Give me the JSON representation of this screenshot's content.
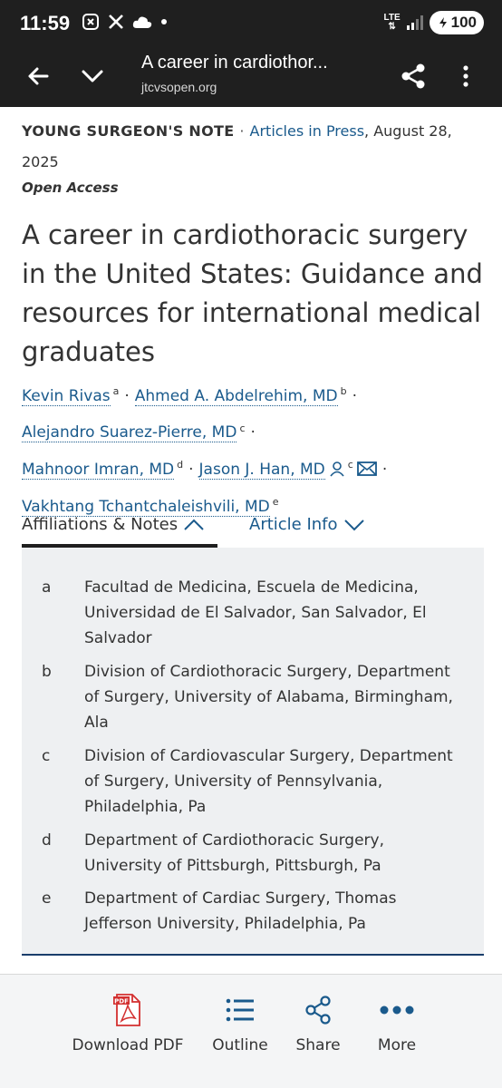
{
  "status_bar": {
    "time": "11:59",
    "network": "LTE",
    "battery": "100"
  },
  "toolbar": {
    "title": "A career in cardiothor...",
    "url": "jtcvsopen.org"
  },
  "article": {
    "section": "YOUNG SURGEON'S NOTE",
    "separator": "·",
    "status": "Articles in Press",
    "date": ", August 28,",
    "year": "2025",
    "open_access": "Open Access",
    "title": "A career in cardiothoracic surgery in the United States: Guidance and resources for international medical graduates",
    "authors": [
      {
        "name": "Kevin Rivas",
        "sup": "a"
      },
      {
        "name": "Ahmed A. Abdelrehim, MD",
        "sup": "b"
      },
      {
        "name": "Alejandro Suarez-Pierre, MD",
        "sup": "c"
      },
      {
        "name": "Mahnoor Imran, MD",
        "sup": "d"
      },
      {
        "name": "Jason J. Han, MD",
        "sup": "c"
      },
      {
        "name": "Vakhtang Tchantchaleishvili, MD",
        "sup": "e"
      }
    ]
  },
  "tabs": {
    "affiliations": "Affiliations & Notes",
    "article_info": "Article Info"
  },
  "affiliations": [
    {
      "letter": "a",
      "text": "Facultad de Medicina, Escuela de Medicina, Universidad de El Salvador, San Salvador, El Salvador"
    },
    {
      "letter": "b",
      "text": "Division of Cardiothoracic Surgery, Department of Surgery, University of Alabama, Birmingham, Ala"
    },
    {
      "letter": "c",
      "text": "Division of Cardiovascular Surgery, Department of Surgery, University of Pennsylvania, Philadelphia, Pa"
    },
    {
      "letter": "d",
      "text": "Department of Cardiothoracic Surgery, University of Pittsburgh, Pittsburgh, Pa"
    },
    {
      "letter": "e",
      "text": "Department of Cardiac Surgery, Thomas Jefferson University, Philadelphia, Pa"
    }
  ],
  "bottom_bar": {
    "download": "Download PDF",
    "outline": "Outline",
    "share": "Share",
    "more": "More",
    "pdf_badge": "PDF"
  },
  "colors": {
    "link": "#1a5a8c",
    "toolbar_bg": "#1f1f1f",
    "panel_bg": "#eef0f2",
    "pdf_red": "#d32f2f"
  },
  "icons": {
    "back": "back-arrow-icon",
    "down": "chevron-down-icon",
    "share": "share-icon",
    "menu": "more-vert-icon",
    "person": "person-icon",
    "mail": "mail-icon",
    "pdf": "pdf-file-icon",
    "outline": "list-icon",
    "more": "more-horiz-icon"
  }
}
